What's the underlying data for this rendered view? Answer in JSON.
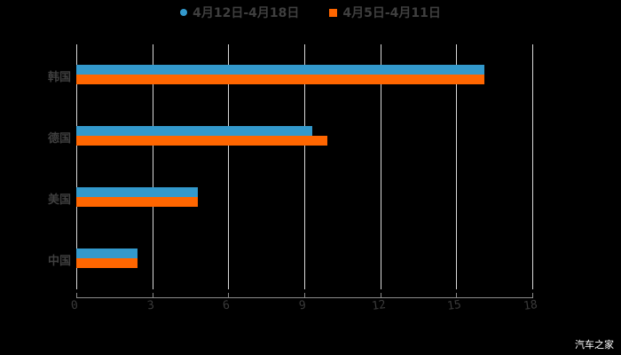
{
  "chart_data": {
    "type": "bar",
    "orientation": "horizontal",
    "title": "",
    "categories": [
      "韩国",
      "德国",
      "美国",
      "中国"
    ],
    "series": [
      {
        "name": "4月12日-4月18日",
        "color": "#3399cc",
        "values": [
          16.1,
          9.3,
          4.8,
          2.4
        ]
      },
      {
        "name": "4月5日-4月11日",
        "color": "#ff6600",
        "values": [
          16.1,
          9.9,
          4.8,
          2.4
        ]
      }
    ],
    "xlabel": "",
    "ylabel": "",
    "xlim": [
      0,
      18
    ],
    "xticks": [
      "0",
      "3",
      "6",
      "9",
      "12",
      "15",
      "18"
    ],
    "grid": true,
    "legend_position": "top"
  },
  "legend": [
    {
      "label": "4月12日-4月18日",
      "color": "#3399cc",
      "shape": "circle"
    },
    {
      "label": "4月5日-4月11日",
      "color": "#ff6600",
      "shape": "square"
    }
  ],
  "watermark": "汽车之家"
}
